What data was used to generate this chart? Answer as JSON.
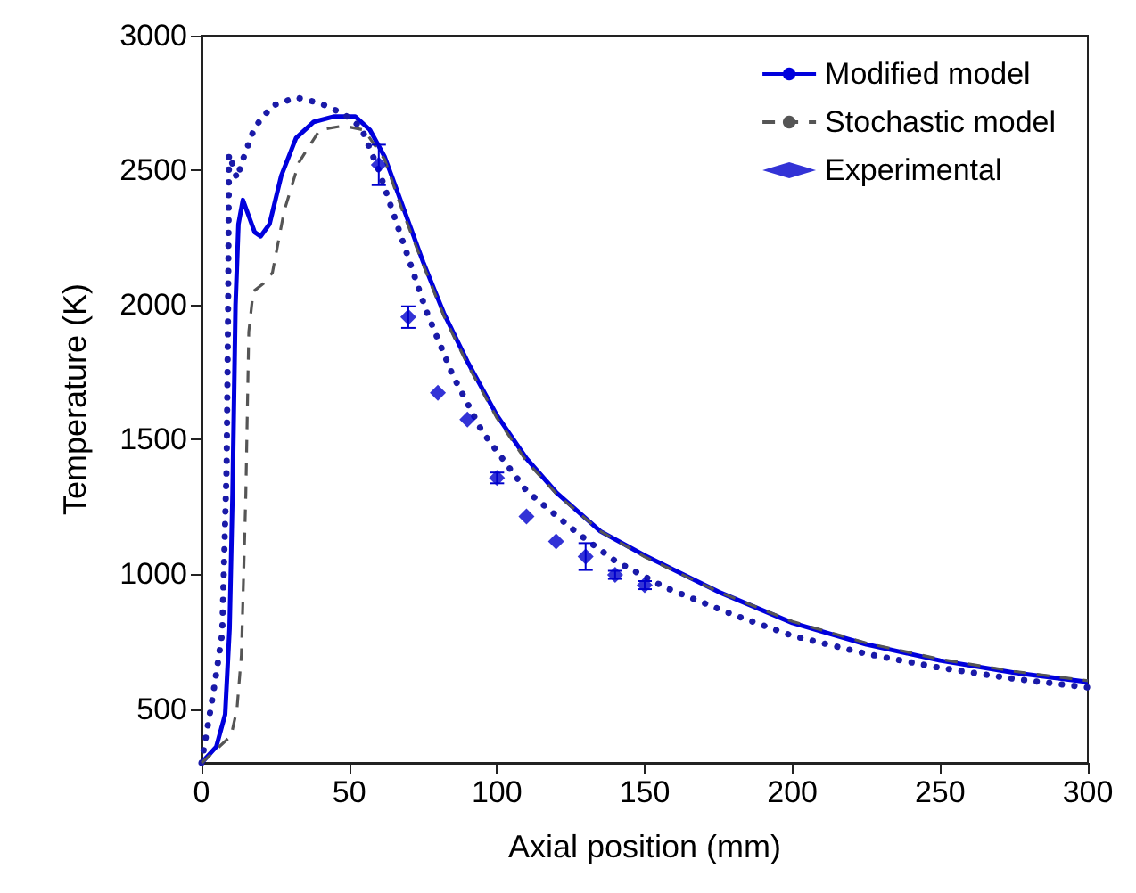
{
  "chart_data": {
    "type": "line",
    "xlabel": "Axial position (mm)",
    "ylabel": "Temperature (K)",
    "xlim": [
      0,
      300
    ],
    "xticks": [
      0,
      50,
      100,
      150,
      200,
      250,
      300
    ],
    "ylim": [
      300,
      3000
    ],
    "yticks": [
      500,
      1000,
      1500,
      2000,
      2500,
      3000
    ],
    "grid": false,
    "legend": "top right",
    "series": [
      {
        "name": "Modified model",
        "color": "#0000dd",
        "line_style": "solid",
        "marker": "none",
        "x": [
          0,
          5,
          8,
          9.5,
          10.5,
          11.5,
          12.5,
          14,
          16,
          18,
          20,
          23,
          27,
          32,
          38,
          45,
          52,
          57,
          62,
          68,
          75,
          82,
          90,
          100,
          110,
          120,
          135,
          150,
          175,
          200,
          225,
          250,
          275,
          300
        ],
        "values": [
          300,
          360,
          480,
          800,
          1300,
          2000,
          2300,
          2390,
          2330,
          2270,
          2255,
          2300,
          2480,
          2620,
          2680,
          2700,
          2700,
          2650,
          2550,
          2370,
          2160,
          1970,
          1790,
          1590,
          1430,
          1305,
          1160,
          1070,
          935,
          820,
          740,
          680,
          635,
          600
        ]
      },
      {
        "color": "#1a1aa8",
        "line_style": "dotted",
        "marker": "none",
        "x": [
          0,
          4,
          7,
          8.5,
          9,
          9.3,
          10,
          12,
          14,
          18,
          24,
          32,
          40,
          48,
          54,
          60,
          68,
          76,
          85,
          95,
          110,
          127,
          140,
          157,
          180,
          200,
          225,
          250,
          275,
          300
        ],
        "values": [
          300,
          560,
          780,
          1400,
          2000,
          2560,
          2540,
          2470,
          2540,
          2660,
          2740,
          2770,
          2750,
          2710,
          2660,
          2500,
          2240,
          1980,
          1740,
          1530,
          1310,
          1155,
          1050,
          951,
          850,
          772,
          705,
          653,
          612,
          580
        ]
      },
      {
        "name": "Stochastic model",
        "color": "#555555",
        "line_style": "dashed",
        "marker": "none",
        "x": [
          0,
          10,
          12,
          13.5,
          15,
          16,
          17.5,
          21,
          24,
          28,
          33,
          40,
          48,
          55,
          62,
          68,
          75,
          82,
          90,
          100,
          110,
          120,
          135,
          150,
          175,
          200,
          225,
          250,
          275,
          300
        ],
        "values": [
          300,
          400,
          500,
          700,
          1300,
          1900,
          2050,
          2080,
          2120,
          2350,
          2530,
          2650,
          2665,
          2650,
          2540,
          2350,
          2150,
          1960,
          1780,
          1580,
          1420,
          1300,
          1160,
          1065,
          935,
          825,
          745,
          685,
          640,
          605
        ]
      },
      {
        "name": "Experimental",
        "type": "scatter",
        "color": "#0000cc",
        "marker": "diamond",
        "x": [
          60,
          70,
          80,
          90,
          100,
          110,
          120,
          130,
          140,
          150
        ],
        "values": [
          2520,
          1955,
          1674,
          1575,
          1358,
          1215,
          1122,
          1066,
          998,
          960
        ],
        "errors": [
          75,
          40,
          null,
          null,
          20,
          null,
          null,
          50,
          15,
          15
        ]
      }
    ]
  }
}
